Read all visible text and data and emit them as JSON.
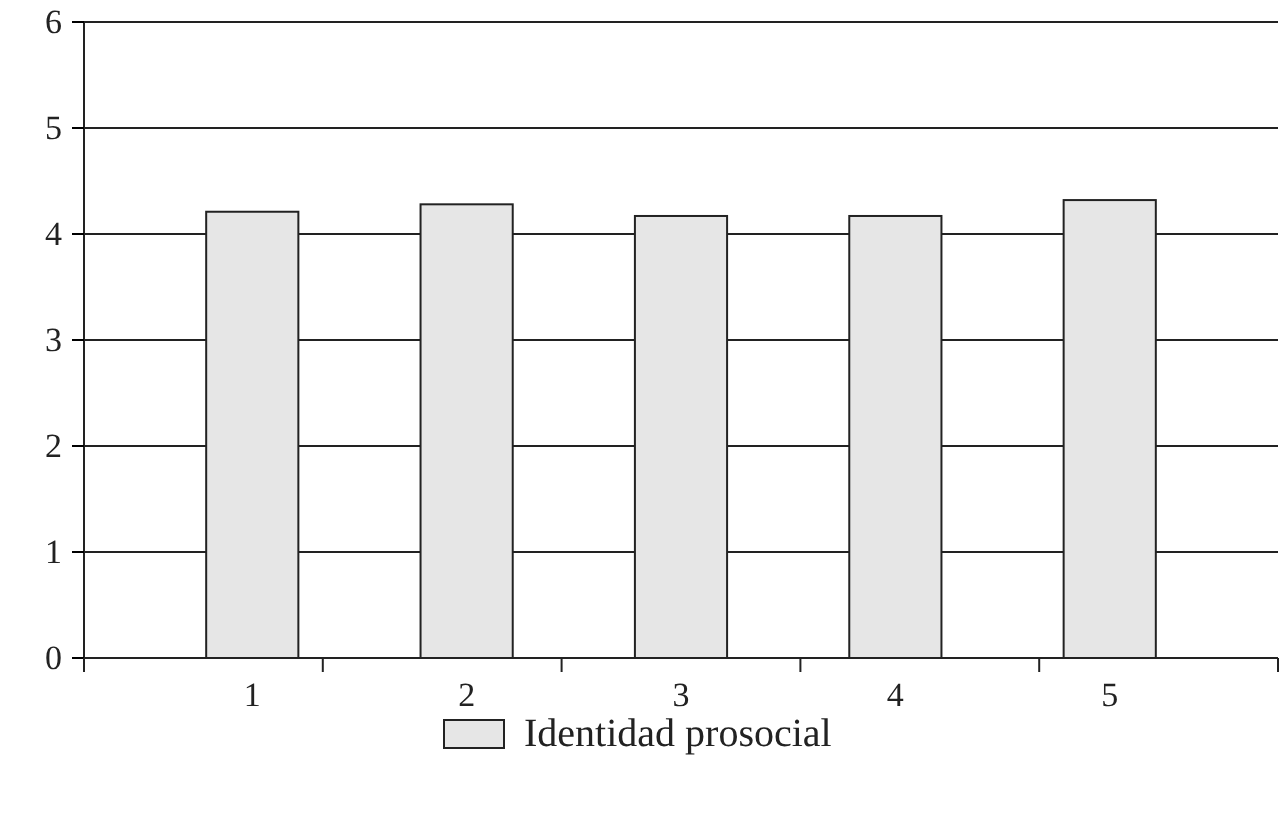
{
  "chart_data": {
    "type": "bar",
    "categories": [
      "1",
      "2",
      "3",
      "4",
      "5"
    ],
    "series": [
      {
        "name": "Identidad prosocial",
        "color": "#e6e6e6",
        "values": [
          4.21,
          4.28,
          4.17,
          4.17,
          4.32
        ]
      }
    ],
    "ylim": [
      0,
      6
    ],
    "yticks": [
      0,
      1,
      2,
      3,
      4,
      5,
      6
    ],
    "grid": "y",
    "legend": "bottom"
  }
}
